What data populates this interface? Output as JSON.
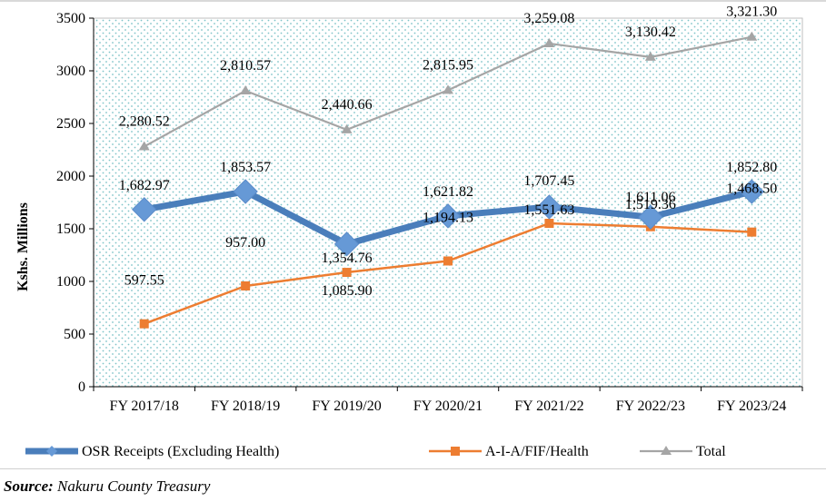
{
  "chart_data": {
    "type": "line",
    "title": "",
    "xlabel": "",
    "ylabel": "Kshs. Millions",
    "ylim": [
      0,
      3500
    ],
    "yticks": [
      0,
      500,
      1000,
      1500,
      2000,
      2500,
      3000,
      3500
    ],
    "grid": false,
    "legend_position": "bottom",
    "categories": [
      "FY 2017/18",
      "FY 2018/19",
      "FY 2019/20",
      "FY 2020/21",
      "FY 2021/22",
      "FY 2022/23",
      "FY 2023/24"
    ],
    "series": [
      {
        "name": "OSR Receipts (Excluding Health)",
        "color": "#4a7ebb",
        "marker": "diamond",
        "values": [
          1682.97,
          1853.57,
          1354.76,
          1621.82,
          1707.45,
          1611.06,
          1852.8
        ],
        "labels": [
          "1,682.97",
          "1,853.57",
          "1,354.76",
          "1,621.82",
          "1,707.45",
          "1,611.06",
          "1,852.80"
        ]
      },
      {
        "name": "A-I-A/FIF/Health",
        "color": "#ed7d31",
        "marker": "square",
        "values": [
          597.55,
          957.0,
          1085.9,
          1194.13,
          1551.63,
          1519.36,
          1468.5
        ],
        "labels": [
          "597.55",
          "957.00",
          "1,085.90",
          "1,194.13",
          "1,551.63",
          "1,519.36",
          "1,468.50"
        ]
      },
      {
        "name": "Total",
        "color": "#a5a5a5",
        "marker": "triangle",
        "values": [
          2280.52,
          2810.57,
          2440.66,
          2815.95,
          3259.08,
          3130.42,
          3321.3
        ],
        "labels": [
          "2,280.52",
          "2,810.57",
          "2,440.66",
          "2,815.95",
          "3,259.08",
          "3,130.42",
          "3,321.30"
        ]
      }
    ]
  },
  "source": {
    "label": "Source:",
    "text": " Nakuru County Treasury"
  }
}
